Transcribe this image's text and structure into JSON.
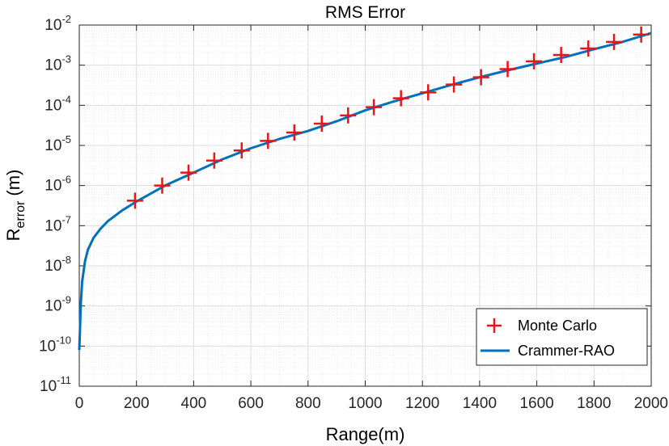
{
  "chart_data": {
    "type": "line",
    "title": "RMS Error",
    "xlabel": "Range(m)",
    "ylabel": {
      "base": "R",
      "subscript": "error",
      "suffix": " (m)"
    },
    "xlim": [
      0,
      2000
    ],
    "ylim": [
      1e-11,
      0.01
    ],
    "yscale": "log",
    "grid": true,
    "minor_grid": true,
    "legend_position": "bottom-right",
    "x_ticks": [
      0,
      200,
      400,
      600,
      800,
      1000,
      1200,
      1400,
      1600,
      1800,
      2000
    ],
    "x_tick_labels": [
      "0",
      "200",
      "400",
      "600",
      "800",
      "1000",
      "1200",
      "1400",
      "1600",
      "1800",
      "2000"
    ],
    "y_ticks": [
      {
        "value": 1e-11,
        "base": "10",
        "exp": "-11"
      },
      {
        "value": 1e-10,
        "base": "10",
        "exp": "-10"
      },
      {
        "value": 1e-09,
        "base": "10",
        "exp": "-9"
      },
      {
        "value": 1e-08,
        "base": "10",
        "exp": "-8"
      },
      {
        "value": 1e-07,
        "base": "10",
        "exp": "-7"
      },
      {
        "value": 1e-06,
        "base": "10",
        "exp": "-6"
      },
      {
        "value": 1e-05,
        "base": "10",
        "exp": "-5"
      },
      {
        "value": 0.0001,
        "base": "10",
        "exp": "-4"
      },
      {
        "value": 0.001,
        "base": "10",
        "exp": "-3"
      },
      {
        "value": 0.01,
        "base": "10",
        "exp": "-2"
      }
    ],
    "series": [
      {
        "name": "Monte Carlo",
        "kind": "markers",
        "marker": "plus",
        "color": "#e8141b",
        "x": [
          195,
          290,
          382,
          472,
          568,
          660,
          752,
          848,
          940,
          1030,
          1125,
          1220,
          1310,
          1405,
          1498,
          1590,
          1685,
          1780,
          1870,
          1965
        ],
        "y": [
          4.2e-07,
          1e-06,
          2.1e-06,
          4.2e-06,
          7.5e-06,
          1.3e-05,
          2.1e-05,
          3.5e-05,
          5.6e-05,
          9e-05,
          0.00015,
          0.00021,
          0.00033,
          0.0005,
          0.0008,
          0.00125,
          0.0018,
          0.0026,
          0.0038,
          0.0058
        ]
      },
      {
        "name": "Crammer-RAO",
        "kind": "line",
        "color": "#0072bd",
        "x": [
          0,
          2,
          5,
          10,
          20,
          30,
          50,
          75,
          100,
          150,
          200,
          300,
          400,
          500,
          600,
          700,
          800,
          900,
          1000,
          1100,
          1200,
          1300,
          1400,
          1500,
          1600,
          1700,
          1800,
          1900,
          2000
        ],
        "y": [
          8e-11,
          2e-10,
          1e-09,
          4e-09,
          1.3e-08,
          2.5e-08,
          5e-08,
          8.5e-08,
          1.3e-07,
          2.4e-07,
          4e-07,
          1e-06,
          2.1e-06,
          4.5e-06,
          8.5e-06,
          1.45e-05,
          2.3e-05,
          4e-05,
          7.5e-05,
          0.000125,
          0.0002,
          0.00032,
          0.0005,
          0.00075,
          0.0011,
          0.0016,
          0.0025,
          0.0038,
          0.0063
        ]
      }
    ]
  }
}
